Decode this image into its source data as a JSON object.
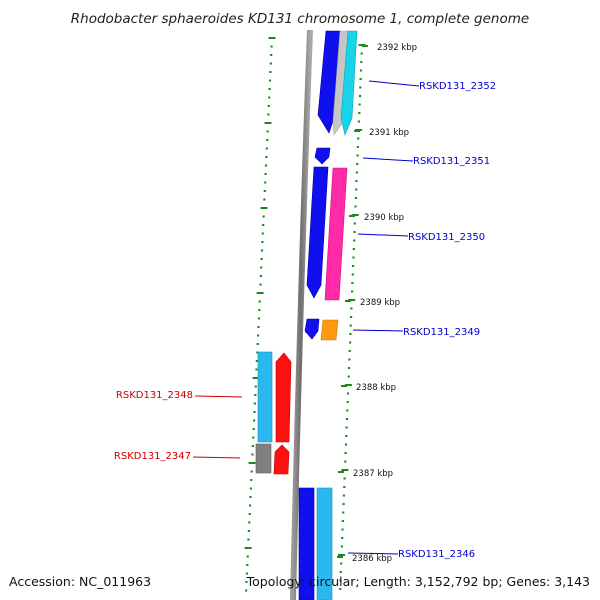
{
  "title": "Rhodobacter sphaeroides KD131 chromosome 1, complete genome",
  "accession_text": "Accession: NC_011963",
  "topology_text": "Topology: circular; Length: 3,152,792 bp; Genes: 3,143",
  "scale_labels": [
    "2392 kbp",
    "2391 kbp",
    "2390 kbp",
    "2389 kbp",
    "2388 kbp",
    "2387 kbp",
    "2386 kbp"
  ],
  "gene_labels": {
    "g2352": "RSKD131_2352",
    "g2351": "RSKD131_2351",
    "g2350": "RSKD131_2350",
    "g2349": "RSKD131_2349",
    "g2348": "RSKD131_2348",
    "g2347": "RSKD131_2347",
    "g2346": "RSKD131_2346"
  },
  "colors": {
    "forward_label": "#0000cc",
    "reverse_label": "#cc0000",
    "backbone": "#7a7a7a",
    "tick": "#1a8a1a",
    "blue": "#1010ee",
    "cyan": "#19d3e8",
    "sky": "#2ab8ee",
    "pink": "#ff2aa8",
    "orange": "#ff9a10",
    "red": "#ff1010",
    "gray": "#808080",
    "light_gray": "#c6c6c6"
  }
}
